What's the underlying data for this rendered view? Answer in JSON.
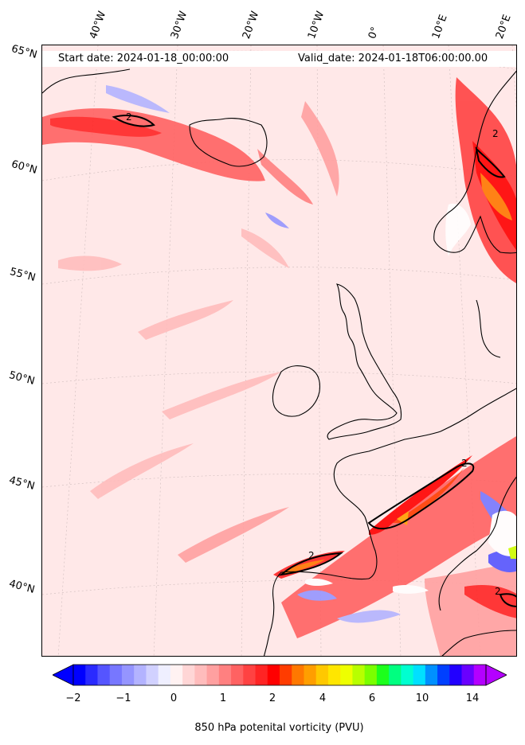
{
  "header": {
    "start_date": "Start date: 2024-01-18_00:00:00",
    "valid_date": "Valid_date: 2024-01-18T06:00:00.00"
  },
  "longitude_labels": [
    "40°W",
    "30°W",
    "20°W",
    "10°W",
    "0°",
    "10°E",
    "20°E"
  ],
  "latitude_labels": [
    "65°N",
    "60°N",
    "55°N",
    "50°N",
    "45°N",
    "40°N"
  ],
  "colorbar": {
    "title": "850 hPa potenital vorticity (PVU)",
    "tick_labels": [
      "−2",
      "−1",
      "0",
      "1",
      "2",
      "4",
      "6",
      "10",
      "14"
    ],
    "levels": [
      -2,
      -1.75,
      -1.5,
      -1.25,
      -1,
      -0.75,
      -0.5,
      -0.25,
      0,
      0.25,
      0.5,
      0.75,
      1,
      1.25,
      1.5,
      1.75,
      2,
      2.5,
      3,
      3.5,
      4,
      4.5,
      5,
      5.5,
      6,
      7,
      8,
      9,
      10,
      11,
      12,
      13,
      14,
      15,
      16
    ],
    "colors": [
      "#0000ff",
      "#2a2aff",
      "#5555ff",
      "#7777ff",
      "#9595ff",
      "#b3b3ff",
      "#d1d1ff",
      "#efefff",
      "#fff2f2",
      "#ffd6d6",
      "#ffbcbc",
      "#ffa0a0",
      "#ff8080",
      "#ff6262",
      "#ff4242",
      "#ff2424",
      "#ff0000",
      "#ff3c00",
      "#ff7800",
      "#ff9e00",
      "#ffc800",
      "#ffe600",
      "#eeff00",
      "#b8ff00",
      "#7aff00",
      "#1cff1c",
      "#00ff80",
      "#00ffd0",
      "#00e0ff",
      "#0090ff",
      "#0040ff",
      "#2200ff",
      "#6a00ff",
      "#b400ff"
    ]
  },
  "contour_label": "2"
}
